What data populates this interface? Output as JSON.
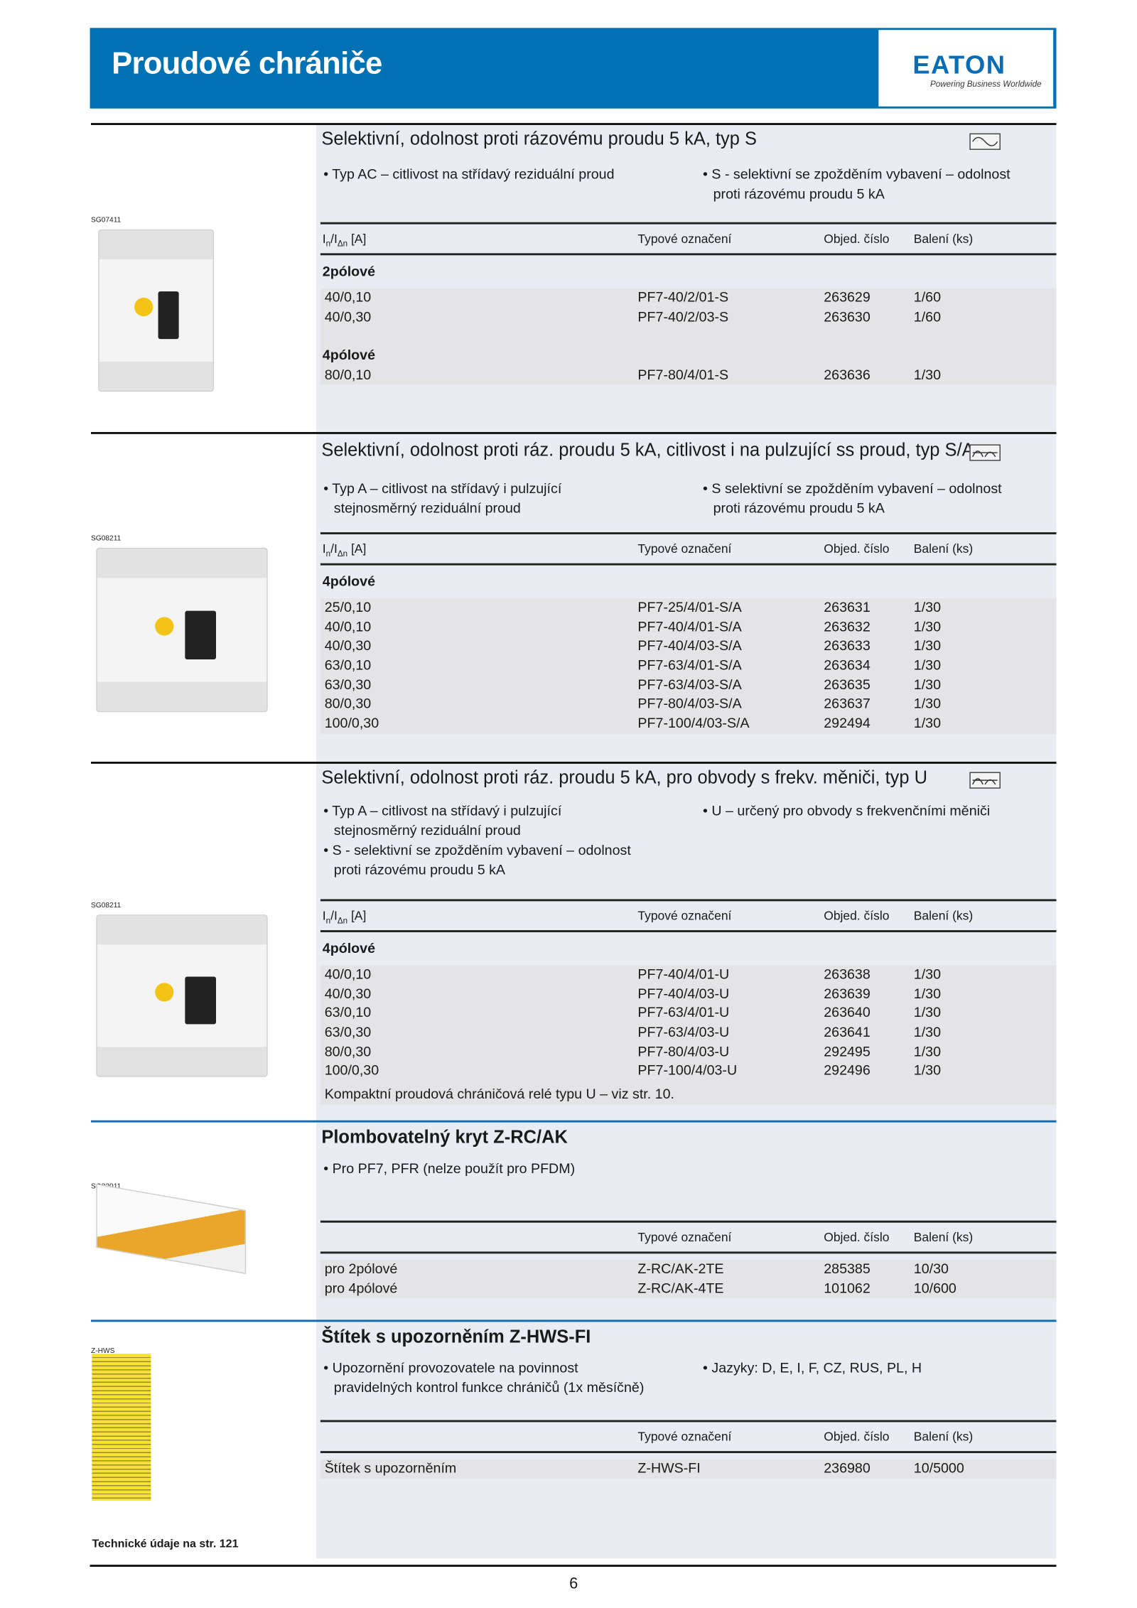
{
  "header": {
    "title": "Proudové chrániče",
    "logo": "EATON",
    "logo_tagline": "Powering Business Worldwide",
    "brand_color": "#0072b4"
  },
  "columns": {
    "rating": "In/IΔn [A]",
    "type": "Typové označení",
    "order": "Objed. číslo",
    "pack": "Balení (ks)"
  },
  "sections": [
    {
      "image_code": "SG07411",
      "title": "Selektivní, odolnost proti rázovému proudu 5 kA, typ S",
      "icon": "ac-sine-wave-icon",
      "bullets_left": [
        "• Typ AC – citlivost na střídavý reziduální proud"
      ],
      "bullets_right": [
        "• S - selektivní se zpožděním vybavení – odolnost",
        "  proti rázovému proudu 5 kA"
      ],
      "groups": [
        {
          "label": "2pólové",
          "rows": [
            [
              "40/0,10",
              "PF7-40/2/01-S",
              "263629",
              "1/60"
            ],
            [
              "40/0,30",
              "PF7-40/2/03-S",
              "263630",
              "1/60"
            ]
          ]
        },
        {
          "label": "4pólové",
          "rows": [
            [
              "80/0,10",
              "PF7-80/4/01-S",
              "263636",
              "1/30"
            ]
          ]
        }
      ]
    },
    {
      "image_code": "SG08211",
      "title": "Selektivní, odolnost proti ráz. proudu 5 kA, citlivost i na pulzující ss proud, typ S/A",
      "icon": "pulsating-dc-wave-icon",
      "bullets_left": [
        "• Typ A – citlivost na střídavý i pulzující",
        "  stejnosměrný reziduální proud"
      ],
      "bullets_right": [
        "• S selektivní se zpožděním vybavení – odolnost",
        "  proti rázovému proudu 5 kA"
      ],
      "groups": [
        {
          "label": "4pólové",
          "rows": [
            [
              "25/0,10",
              "PF7-25/4/01-S/A",
              "263631",
              "1/30"
            ],
            [
              "40/0,10",
              "PF7-40/4/01-S/A",
              "263632",
              "1/30"
            ],
            [
              "40/0,30",
              "PF7-40/4/03-S/A",
              "263633",
              "1/30"
            ],
            [
              "63/0,10",
              "PF7-63/4/01-S/A",
              "263634",
              "1/30"
            ],
            [
              "63/0,30",
              "PF7-63/4/03-S/A",
              "263635",
              "1/30"
            ],
            [
              "80/0,30",
              "PF7-80/4/03-S/A",
              "263637",
              "1/30"
            ],
            [
              "100/0,30",
              "PF7-100/4/03-S/A",
              "292494",
              "1/30"
            ]
          ]
        }
      ]
    },
    {
      "image_code": "SG08211",
      "title": "Selektivní, odolnost proti ráz. proudu 5 kA, pro obvody s frekv. měniči, typ U",
      "icon": "pulsating-dc-wave-icon",
      "bullets_left": [
        "• Typ A – citlivost na střídavý i pulzující",
        "  stejnosměrný reziduální proud",
        "• S - selektivní se zpožděním vybavení – odolnost",
        "  proti rázovému proudu 5 kA"
      ],
      "bullets_right": [
        "• U – určený pro obvody s frekvenčními měniči"
      ],
      "groups": [
        {
          "label": "4pólové",
          "rows": [
            [
              "40/0,10",
              "PF7-40/4/01-U",
              "263638",
              "1/30"
            ],
            [
              "40/0,30",
              "PF7-40/4/03-U",
              "263639",
              "1/30"
            ],
            [
              "63/0,10",
              "PF7-63/4/01-U",
              "263640",
              "1/30"
            ],
            [
              "63/0,30",
              "PF7-63/4/03-U",
              "263641",
              "1/30"
            ],
            [
              "80/0,30",
              "PF7-80/4/03-U",
              "292495",
              "1/30"
            ],
            [
              "100/0,30",
              "PF7-100/4/03-U",
              "292496",
              "1/30"
            ]
          ]
        }
      ],
      "note": "Kompaktní proudová chráničová relé typu U – viz str. 10."
    },
    {
      "image_code": "SG82011",
      "title": "Plombovatelný kryt Z-RC/AK",
      "bullets_left": [
        "• Pro PF7, PFR (nelze použít pro PFDM)"
      ],
      "bullets_right": [],
      "groups": [
        {
          "label": "",
          "rows": [
            [
              "pro 2pólové",
              "Z-RC/AK-2TE",
              "285385",
              "10/30"
            ],
            [
              "pro 4pólové",
              "Z-RC/AK-4TE",
              "101062",
              "10/600"
            ]
          ]
        }
      ]
    },
    {
      "image_code": "Z-HWS",
      "title": "Štítek s upozorněním Z-HWS-FI",
      "bullets_left": [
        "• Upozornění provozovatele na povinnost",
        "  pravidelných kontrol funkce chráničů (1x měsíčně)"
      ],
      "bullets_right": [
        "• Jazyky: D, E, I, F, CZ, RUS, PL, H"
      ],
      "groups": [
        {
          "label": "",
          "rows": [
            [
              "Štítek s upozorněním",
              "Z-HWS-FI",
              "236980",
              "10/5000"
            ]
          ]
        }
      ]
    }
  ],
  "footer": {
    "tech_note": "Technické údaje na str. 121",
    "page_number": "6"
  }
}
